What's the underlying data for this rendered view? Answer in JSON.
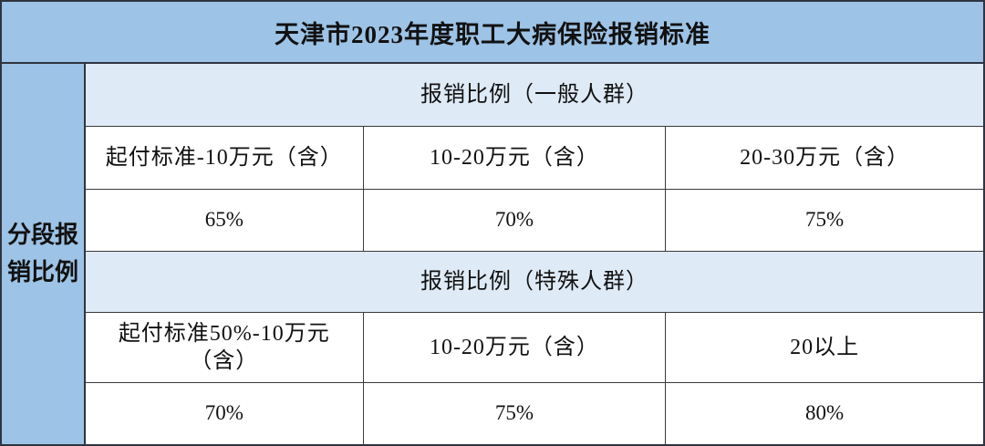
{
  "colors": {
    "header_blue": "#9dc3e6",
    "band_blue": "#deeaf6",
    "cell_white": "#ffffff",
    "border_dark": "#2e3440",
    "border_inner": "#3a3a3a",
    "text": "#111111"
  },
  "table": {
    "title": "天津市2023年度职工大病保险报销标准",
    "side_header": "分段报\n销比例",
    "sections": [
      {
        "band": "报销比例（一般人群）",
        "ranges": [
          "起付标准-10万元（含）",
          "10-20万元（含）",
          "20-30万元（含）"
        ],
        "rates": [
          "65%",
          "70%",
          "75%"
        ]
      },
      {
        "band": "报销比例（特殊人群）",
        "ranges": [
          "起付标准50%-10万元\n（含）",
          "10-20万元（含）",
          "20以上"
        ],
        "rates": [
          "70%",
          "75%",
          "80%"
        ]
      }
    ]
  }
}
